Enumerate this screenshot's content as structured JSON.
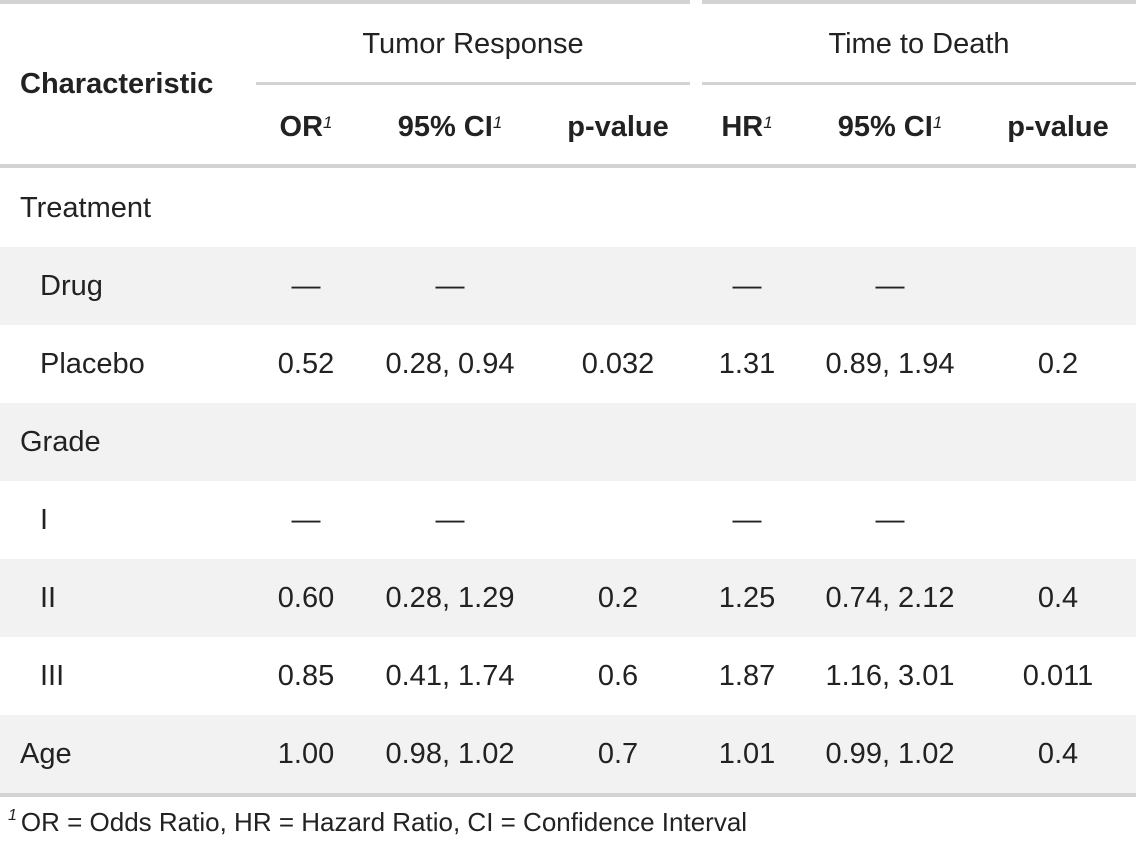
{
  "table": {
    "characteristic_header": "Characteristic",
    "spanners": [
      {
        "label": "Tumor Response"
      },
      {
        "label": "Time to Death"
      }
    ],
    "columns": [
      {
        "label": "OR",
        "footnote_mark": "1"
      },
      {
        "label": "95% CI",
        "footnote_mark": "1"
      },
      {
        "label": "p-value",
        "footnote_mark": ""
      },
      {
        "label": "HR",
        "footnote_mark": "1"
      },
      {
        "label": "95% CI",
        "footnote_mark": "1"
      },
      {
        "label": "p-value",
        "footnote_mark": ""
      }
    ],
    "rows": [
      {
        "label": "Treatment",
        "indent": false,
        "cells": [
          "",
          "",
          "",
          "",
          "",
          ""
        ]
      },
      {
        "label": "Drug",
        "indent": true,
        "cells": [
          "—",
          "—",
          "",
          "—",
          "—",
          ""
        ]
      },
      {
        "label": "Placebo",
        "indent": true,
        "cells": [
          "0.52",
          "0.28, 0.94",
          "0.032",
          "1.31",
          "0.89, 1.94",
          "0.2"
        ]
      },
      {
        "label": "Grade",
        "indent": false,
        "cells": [
          "",
          "",
          "",
          "",
          "",
          ""
        ]
      },
      {
        "label": "I",
        "indent": true,
        "cells": [
          "—",
          "—",
          "",
          "—",
          "—",
          ""
        ]
      },
      {
        "label": "II",
        "indent": true,
        "cells": [
          "0.60",
          "0.28, 1.29",
          "0.2",
          "1.25",
          "0.74, 2.12",
          "0.4"
        ]
      },
      {
        "label": "III",
        "indent": true,
        "cells": [
          "0.85",
          "0.41, 1.74",
          "0.6",
          "1.87",
          "1.16, 3.01",
          "0.011"
        ]
      },
      {
        "label": "Age",
        "indent": false,
        "cells": [
          "1.00",
          "0.98, 1.02",
          "0.7",
          "1.01",
          "0.99, 1.02",
          "0.4"
        ]
      }
    ],
    "footnote": {
      "mark": "1",
      "text": "OR = Odds Ratio, HR = Hazard Ratio, CI = Confidence Interval"
    }
  }
}
